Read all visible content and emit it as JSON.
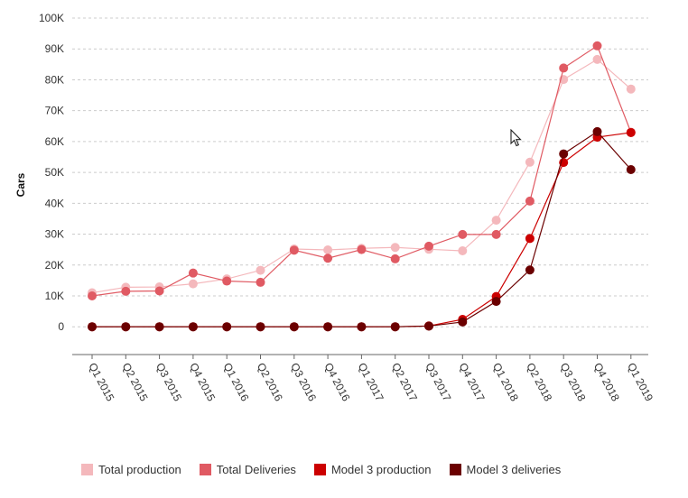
{
  "chart_data": {
    "type": "line",
    "ylabel": "Cars",
    "ylim": [
      -9000,
      100000
    ],
    "y_ticks": [
      0,
      10000,
      20000,
      30000,
      40000,
      50000,
      60000,
      70000,
      80000,
      90000,
      100000
    ],
    "y_tick_labels": [
      "0",
      "10K",
      "20K",
      "30K",
      "40K",
      "50K",
      "60K",
      "70K",
      "80K",
      "90K",
      "100K"
    ],
    "grid": true,
    "legend_position": "bottom",
    "categories": [
      "Q1 2015",
      "Q2 2015",
      "Q3 2015",
      "Q4 2015",
      "Q1 2016",
      "Q2 2016",
      "Q3 2016",
      "Q4 2016",
      "Q1 2017",
      "Q2 2017",
      "Q3 2017",
      "Q4 2017",
      "Q1 2018",
      "Q2 2018",
      "Q3 2018",
      "Q4 2018",
      "Q1 2019"
    ],
    "series": [
      {
        "name": "Total production",
        "color": "#f4b8bc",
        "values": [
          11000,
          12800,
          12900,
          13900,
          15500,
          18300,
          25200,
          24900,
          25400,
          25700,
          25100,
          24600,
          34500,
          53300,
          80100,
          86600,
          77000
        ]
      },
      {
        "name": "Total Deliveries",
        "color": "#e05a63",
        "values": [
          10000,
          11500,
          11600,
          17400,
          14800,
          14400,
          24800,
          22200,
          25000,
          22000,
          26100,
          29900,
          29900,
          40700,
          83800,
          91000,
          63000
        ]
      },
      {
        "name": "Model 3 production",
        "color": "#cc0000",
        "values": [
          0,
          0,
          0,
          0,
          0,
          0,
          0,
          0,
          0,
          0,
          260,
          2400,
          9800,
          28600,
          53200,
          61400,
          62900
        ]
      },
      {
        "name": "Model 3 deliveries",
        "color": "#6b0000",
        "values": [
          0,
          0,
          0,
          0,
          0,
          0,
          0,
          0,
          0,
          0,
          220,
          1550,
          8200,
          18400,
          56000,
          63200,
          50900
        ]
      }
    ]
  }
}
